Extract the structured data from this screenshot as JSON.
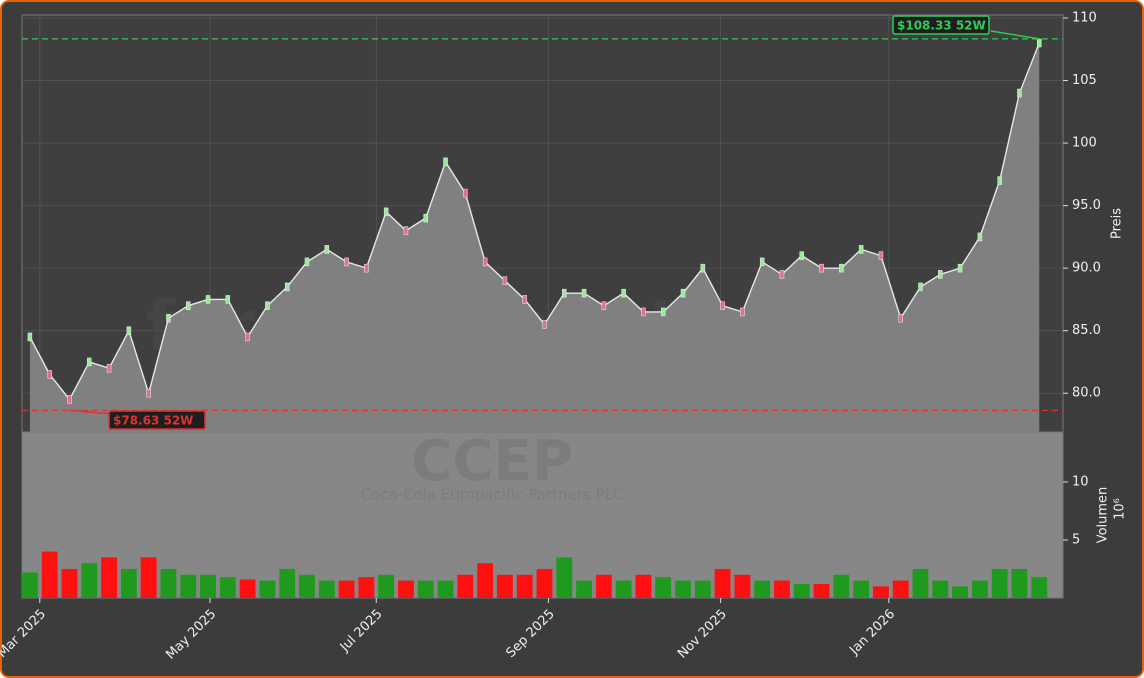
{
  "chart_data": [
    {
      "type": "area",
      "watermark": "forexsignale.trade",
      "ylabel": "Preis",
      "values": [
        84.5,
        81.5,
        79.5,
        82.5,
        82,
        85,
        80,
        86,
        87,
        87.5,
        87.5,
        84.5,
        87,
        88.5,
        90.5,
        91.5,
        90.5,
        90,
        94.5,
        93,
        94,
        98.5,
        96,
        90.5,
        89,
        87.5,
        85.5,
        88,
        88,
        87,
        88,
        86.5,
        86.5,
        88,
        90,
        87,
        86.5,
        90.5,
        89.5,
        91,
        90,
        90,
        91.5,
        91,
        86,
        88.5,
        89.5,
        90,
        92.5,
        97,
        104,
        108
      ],
      "color": "#808080",
      "line_color": "#e8e8e8",
      "xlim": [
        -0.4,
        52.2
      ],
      "ylim": [
        76.9,
        110.24
      ],
      "yticks": [
        {
          "value": 80,
          "label": "80.0"
        },
        {
          "value": 85,
          "label": "85.0"
        },
        {
          "value": 90,
          "label": "90.0"
        },
        {
          "value": 95,
          "label": "95.0"
        },
        {
          "value": 100,
          "label": "100"
        },
        {
          "value": 105,
          "label": "105"
        },
        {
          "value": 110,
          "label": "110"
        }
      ],
      "grid": true,
      "annotations": [
        {
          "text": "$108.33 52W",
          "value": 108.33,
          "color": "#2ecc55"
        },
        {
          "text": "$78.63 52W",
          "value": 78.63,
          "color": "#e03030"
        }
      ]
    },
    {
      "type": "bar",
      "title": "CCEP",
      "subtitle": "Coca-Cola Europacific Partners PLC",
      "ylabel": "Volumen",
      "yunit": "10⁶",
      "values": [
        2.2,
        4,
        2.5,
        3,
        3.5,
        2.5,
        3.5,
        2.5,
        2,
        2,
        1.8,
        1.6,
        1.5,
        2.5,
        2,
        1.5,
        1.5,
        1.8,
        2,
        1.5,
        1.5,
        1.5,
        2,
        3,
        2,
        2,
        2.5,
        3.5,
        1.5,
        2,
        1.5,
        2,
        1.8,
        1.5,
        1.5,
        2.5,
        2,
        1.5,
        1.5,
        1.2,
        1.2,
        2,
        1.5,
        1,
        1.5,
        2.5,
        1.5,
        1,
        1.5,
        2.5,
        2.5,
        1.8
      ],
      "up_color": "#1f9a1f",
      "down_color": "#ff1010",
      "xlim": [
        -0.4,
        52.2
      ],
      "ylim": [
        0,
        14.3
      ],
      "yticks": [
        5,
        10
      ],
      "xticks": [
        {
          "value": 0.5,
          "label": "Mar 2025"
        },
        {
          "value": 9.1,
          "label": "May 2025"
        },
        {
          "value": 17.5,
          "label": "Jul 2025"
        },
        {
          "value": 26.2,
          "label": "Sep 2025"
        },
        {
          "value": 34.9,
          "label": "Nov 2025"
        },
        {
          "value": 43.4,
          "label": "Jan 2026"
        }
      ]
    }
  ]
}
